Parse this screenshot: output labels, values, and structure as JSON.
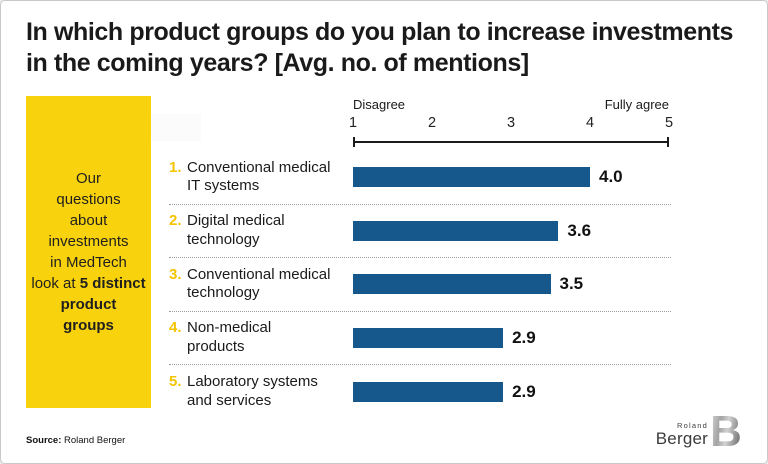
{
  "title": "In which product groups do you plan to increase investments in the coming years? [Avg. no. of mentions]",
  "sidebar": {
    "text_regular": "Our\nquestions\nabout\ninvestments\nin MedTech\nlook at",
    "text_bold": "5 distinct\nproduct\ngroups"
  },
  "chart_data": {
    "type": "bar",
    "orientation": "horizontal",
    "title": "In which product groups do you plan to increase investments in the coming years? [Avg. no. of mentions]",
    "categories": [
      "Conventional medical IT systems",
      "Digital medical technology",
      "Conventional medical technology",
      "Non-medical products",
      "Laboratory systems and services"
    ],
    "values": [
      4.0,
      3.6,
      3.5,
      2.9,
      2.9
    ],
    "xlim": [
      1,
      5
    ],
    "grid": false,
    "axis": {
      "left_label": "Disagree",
      "right_label": "Fully agree",
      "ticks": [
        "1",
        "2",
        "3",
        "4",
        "5"
      ]
    },
    "items": [
      {
        "rank": "1.",
        "label": "Conventional medical\nIT systems",
        "value": 4.0,
        "value_label": "4.0"
      },
      {
        "rank": "2.",
        "label": "Digital medical\ntechnology",
        "value": 3.6,
        "value_label": "3.6"
      },
      {
        "rank": "3.",
        "label": "Conventional medical\ntechnology",
        "value": 3.5,
        "value_label": "3.5"
      },
      {
        "rank": "4.",
        "label": "Non-medical\nproducts",
        "value": 2.9,
        "value_label": "2.9"
      },
      {
        "rank": "5.",
        "label": "Laboratory systems\nand services",
        "value": 2.9,
        "value_label": "2.9"
      }
    ],
    "bar_color": "#16578C"
  },
  "footer": {
    "source_label": "Source:",
    "source_value": " Roland Berger",
    "logo_top": "Roland",
    "logo_bottom": "Berger",
    "logo_mark": "B"
  },
  "colors": {
    "accent_yellow": "#F8D20D",
    "rank_yellow": "#F5C400",
    "bar_blue": "#16578C",
    "text_dark": "#1A1A1A"
  }
}
